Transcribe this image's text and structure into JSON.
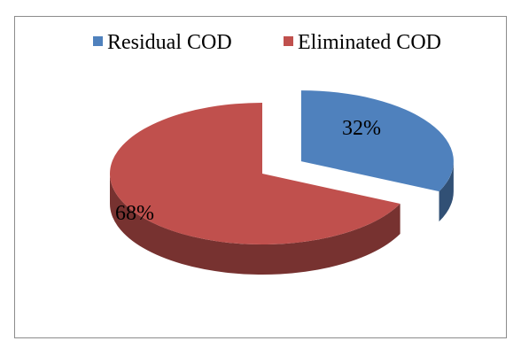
{
  "chart_data": {
    "type": "pie",
    "title": "",
    "categories": [
      "Residual COD",
      "Eliminated COD"
    ],
    "values": [
      32,
      68
    ],
    "data_labels": [
      "32%",
      "68%"
    ],
    "exploded": [
      "Residual COD"
    ],
    "three_d": true,
    "legend_placement": "top",
    "colors": [
      "#4f81bd",
      "#c0504d"
    ]
  }
}
